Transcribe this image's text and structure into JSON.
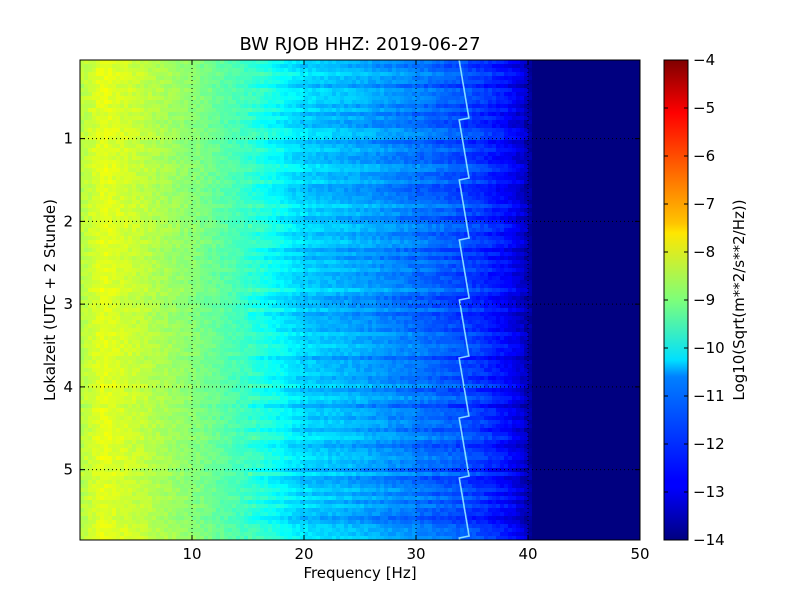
{
  "chart_data": {
    "type": "heatmap",
    "title": "BW RJOB HHZ: 2019-06-27",
    "xlabel": "Frequency [Hz]",
    "ylabel": "Lokalzeit (UTC + 2 Stunde)",
    "xlim": [
      0,
      50
    ],
    "ylim": [
      5.85,
      0.05
    ],
    "x_ticks": [
      10,
      20,
      30,
      40,
      50
    ],
    "y_ticks": [
      1,
      2,
      3,
      4,
      5
    ],
    "grid": true,
    "colormap": "jet",
    "colorbar": {
      "label": "Log10(Sqrt(m**2/s**2/Hz))",
      "range": [
        -14,
        -4
      ],
      "ticks": [
        -4,
        -5,
        -6,
        -7,
        -8,
        -9,
        -10,
        -11,
        -12,
        -13,
        -14
      ]
    },
    "frequency_profile_hz": [
      0,
      2,
      5,
      10,
      15,
      20,
      25,
      30,
      33,
      36,
      38,
      39.5,
      40.5,
      45,
      50
    ],
    "frequency_profile_value": [
      -8.5,
      -8.0,
      -8.3,
      -8.9,
      -9.7,
      -10.7,
      -11.1,
      -11.6,
      -11.9,
      -12.3,
      -12.7,
      -13.2,
      -13.9,
      -14.0,
      -14.0
    ],
    "tone_line_hz": 34.3
  }
}
